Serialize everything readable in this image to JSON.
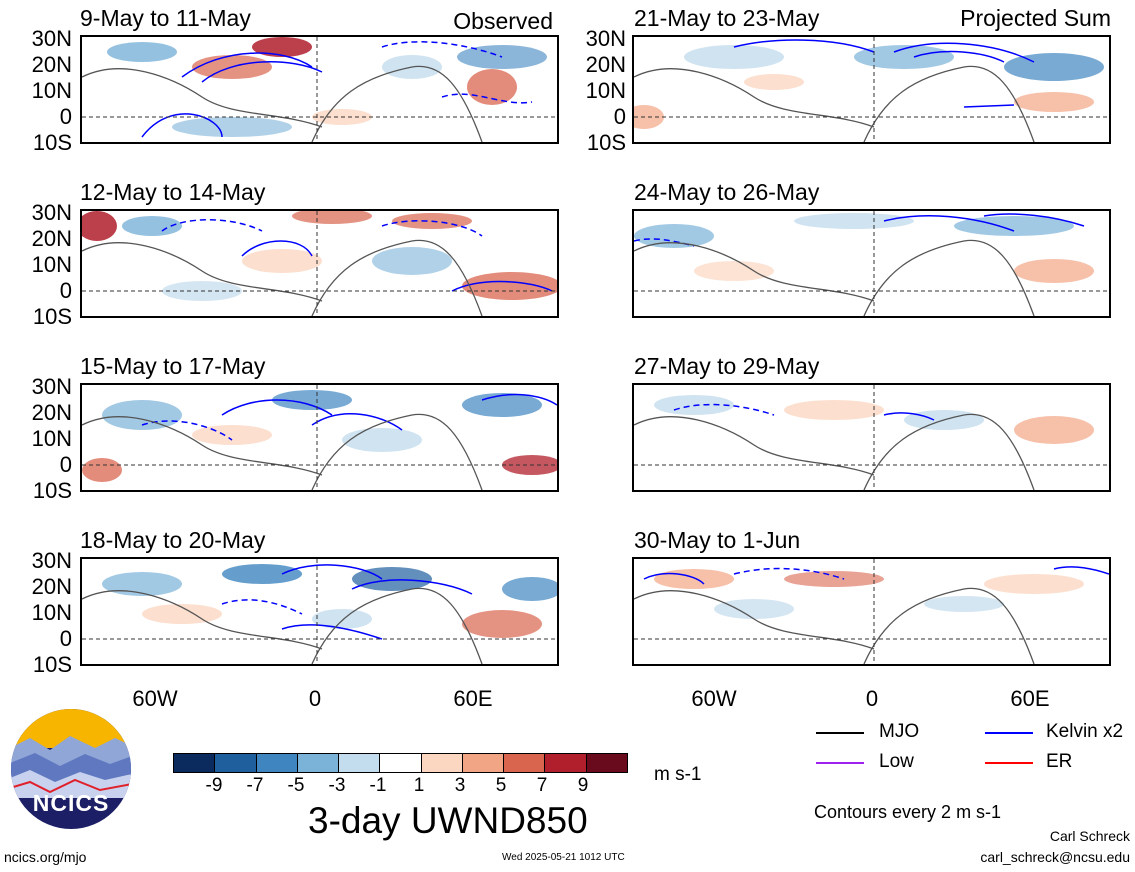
{
  "panels_observed": [
    {
      "title": "9-May to 11-May",
      "tag": "Observed"
    },
    {
      "title": "12-May to 14-May",
      "tag": ""
    },
    {
      "title": "15-May to 17-May",
      "tag": ""
    },
    {
      "title": "18-May to 20-May",
      "tag": ""
    }
  ],
  "panels_projected": [
    {
      "title": "21-May to 23-May",
      "tag": "Projected Sum"
    },
    {
      "title": "24-May to 26-May",
      "tag": ""
    },
    {
      "title": "27-May to 29-May",
      "tag": ""
    },
    {
      "title": "30-May to 1-Jun",
      "tag": ""
    }
  ],
  "lat_labels": [
    "30N",
    "20N",
    "10N",
    "0",
    "10S"
  ],
  "lon_labels": [
    "60W",
    "0",
    "60E"
  ],
  "colorbar": {
    "labels": [
      "-9",
      "-7",
      "-5",
      "-3",
      "-1",
      "1",
      "3",
      "5",
      "7",
      "9"
    ],
    "colors": [
      "#0b2a5e",
      "#1f5f9e",
      "#3f86c0",
      "#7bb2d8",
      "#c3dcee",
      "#ffffff",
      "#fbd7c2",
      "#f2a585",
      "#d9654f",
      "#b01f2b",
      "#6a0a1d"
    ],
    "units": "m s-1"
  },
  "title": "3-day UWND850",
  "legend": [
    {
      "label": "MJO",
      "color": "#000000"
    },
    {
      "label": "Kelvin x2",
      "color": "#0000ff"
    },
    {
      "label": "Low",
      "color": "#a020f0"
    },
    {
      "label": "ER",
      "color": "#ff0000"
    }
  ],
  "contour_note": "Contours every 2 m s-1",
  "logo_text": "NCICS",
  "footer": {
    "url": "ncics.org/mjo",
    "timestamp": "Wed 2025-05-21 1012 UTC",
    "author": "Carl Schreck",
    "email": "carl_schreck@ncsu.edu"
  }
}
